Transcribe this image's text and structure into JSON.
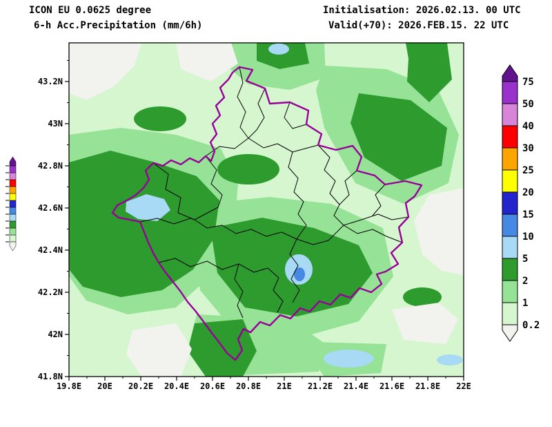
{
  "header": {
    "model_line": "ICON EU 0.0625 degree",
    "product_line": "6-h Acc.Precipitation (mm/6h)",
    "init_line": "Initialisation: 2026.02.13. 00 UTC",
    "valid_line": "Valid(+70): 2026.FEB.15. 22 UTC"
  },
  "map": {
    "x_ticks": [
      "19.8E",
      "20E",
      "20.2E",
      "20.4E",
      "20.6E",
      "20.8E",
      "21E",
      "21.2E",
      "21.4E",
      "21.6E",
      "21.8E",
      "22E"
    ],
    "y_ticks": [
      "43.2N",
      "43N",
      "42.8N",
      "42.6N",
      "42.4N",
      "42.2N",
      "42N",
      "41.8N"
    ],
    "lon_range": "19.8E - 22E",
    "lat_range": "41.8N - 43.3N",
    "border_color": "#990099",
    "district_color": "#000000"
  },
  "colorbar": {
    "levels": [
      "0.2",
      "1",
      "2",
      "5",
      "10",
      "15",
      "20",
      "25",
      "30",
      "40",
      "50",
      "75"
    ],
    "band_colors": [
      "#d5f6cf",
      "#96e296",
      "#2d9b2d",
      "#a8d9f5",
      "#4689e3",
      "#2424cc",
      "#ffff00",
      "#ffa500",
      "#fe0000",
      "#d884d8",
      "#9932cc"
    ],
    "over_color": "#62118f",
    "under_color": "#f2f2ee"
  }
}
